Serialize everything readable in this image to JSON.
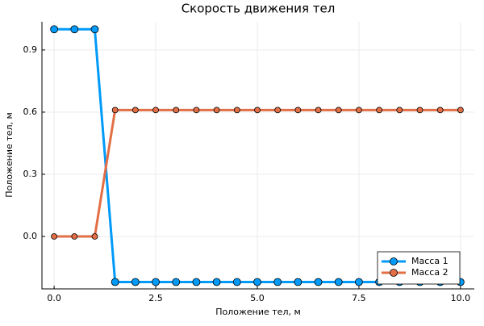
{
  "chart_data": {
    "type": "line",
    "title": "Скорость движения тел",
    "x_label": "Положение тел, м",
    "y_label": "Положение тел, м",
    "x": [
      0,
      0.5,
      1,
      1.5,
      2,
      2.5,
      3,
      3.5,
      4,
      4.5,
      5,
      5.5,
      6,
      6.5,
      7,
      7.5,
      8,
      8.5,
      9,
      9.5,
      10
    ],
    "series": [
      {
        "name": "Масса 1",
        "color": "#009af9",
        "values": [
          1.0,
          1.0,
          1.0,
          -0.22,
          -0.22,
          -0.22,
          -0.22,
          -0.22,
          -0.22,
          -0.22,
          -0.22,
          -0.22,
          -0.22,
          -0.22,
          -0.22,
          -0.22,
          -0.22,
          -0.22,
          -0.22,
          -0.22,
          -0.22
        ]
      },
      {
        "name": "Масса 2",
        "color": "#e26f46",
        "values": [
          0,
          0,
          0,
          0.61,
          0.61,
          0.61,
          0.61,
          0.61,
          0.61,
          0.61,
          0.61,
          0.61,
          0.61,
          0.61,
          0.61,
          0.61,
          0.61,
          0.61,
          0.61,
          0.61,
          0.61
        ]
      }
    ],
    "xlim": [
      -0.3,
      10.34
    ],
    "ylim": [
      -0.253,
      1.036
    ],
    "xticks": [
      {
        "value": 0,
        "label": "0.0"
      },
      {
        "value": 2.5,
        "label": "2.5"
      },
      {
        "value": 5,
        "label": "5.0"
      },
      {
        "value": 7.5,
        "label": "7.5"
      },
      {
        "value": 10,
        "label": "10.0"
      }
    ],
    "yticks": [
      {
        "value": 0,
        "label": "0.0"
      },
      {
        "value": 0.3,
        "label": "0.3"
      },
      {
        "value": 0.6,
        "label": "0.6"
      },
      {
        "value": 0.9,
        "label": "0.9"
      }
    ],
    "grid": true,
    "legend": "bottom-right"
  }
}
